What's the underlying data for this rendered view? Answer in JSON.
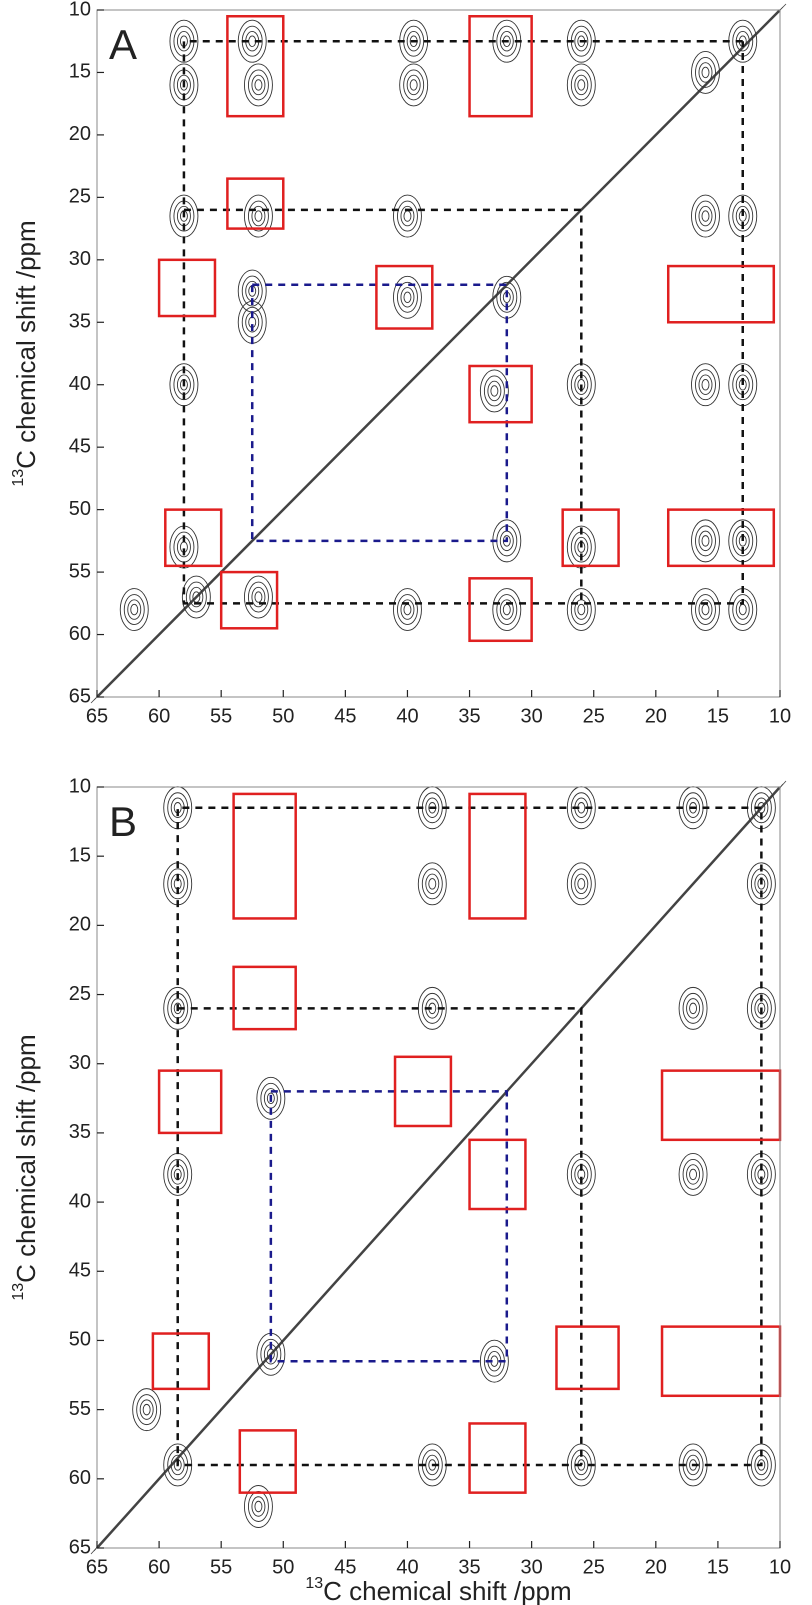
{
  "chart_data": [
    {
      "type": "contour",
      "panel_label": "A",
      "ylabel_isotope": "13",
      "ylabel": "C chemical shift /ppm",
      "xlim": [
        65,
        10
      ],
      "ylim": [
        10,
        65
      ],
      "xticks": [
        65,
        60,
        55,
        50,
        45,
        40,
        35,
        30,
        25,
        20,
        15,
        10
      ],
      "yticks": [
        10,
        15,
        20,
        25,
        30,
        35,
        40,
        45,
        50,
        55,
        60,
        65
      ],
      "peaks": {
        "color": "#333333",
        "x": [
          58,
          58,
          52.5,
          52,
          39.5,
          39.5,
          32,
          26,
          26,
          16,
          13,
          58,
          52,
          40,
          16,
          13,
          52.5,
          52.5,
          40,
          32,
          58,
          33,
          26,
          16,
          13,
          58,
          32,
          26,
          16,
          13,
          62,
          57,
          52,
          40,
          32,
          26,
          16,
          13
        ],
        "y": [
          12.5,
          16,
          12.5,
          16,
          12.5,
          16,
          12.5,
          12.5,
          16,
          15,
          12.5,
          26.5,
          26.5,
          26.5,
          26.5,
          26.5,
          32.5,
          35,
          33,
          33,
          40,
          40.5,
          40,
          40,
          40,
          53,
          52.5,
          53,
          52.5,
          52.5,
          58,
          57,
          57,
          58,
          58,
          58,
          58,
          58
        ]
      },
      "boxes": {
        "color": "#e02020",
        "x1": [
          54.5,
          35,
          54.5,
          60,
          42.5,
          19,
          35,
          59.5,
          27.5,
          19,
          55,
          35
        ],
        "x2": [
          50,
          30,
          50,
          55.5,
          38,
          10.5,
          30,
          55,
          23,
          10.5,
          50.5,
          30
        ],
        "y1": [
          10.5,
          10.5,
          23.5,
          30,
          30.5,
          30.5,
          38.5,
          50,
          50,
          50,
          55,
          55.5
        ],
        "y2": [
          18.5,
          18.5,
          27.5,
          34.5,
          35.5,
          35,
          43,
          54.5,
          54.5,
          54.5,
          59.5,
          60.5
        ]
      },
      "dashed": [
        {
          "color": "#111111",
          "x": [
            13,
            58,
            58,
            13,
            13
          ],
          "y": [
            12.5,
            12.5,
            57.5,
            57.5,
            12.5
          ]
        },
        {
          "color": "#111111",
          "x": [
            58,
            26,
            26
          ],
          "y": [
            26,
            26,
            57.5
          ]
        },
        {
          "color": "#1a1a8c",
          "x": [
            52.5,
            32,
            32,
            52.5,
            52.5
          ],
          "y": [
            32,
            32,
            52.5,
            52.5,
            32
          ]
        }
      ]
    },
    {
      "type": "contour",
      "panel_label": "B",
      "ylabel_isotope": "13",
      "ylabel": "C chemical shift /ppm",
      "xlabel_isotope": "13",
      "xlabel": "C chemical shift /ppm",
      "xlim": [
        65,
        10
      ],
      "ylim": [
        10,
        65
      ],
      "xticks": [
        65,
        60,
        55,
        50,
        45,
        40,
        35,
        30,
        25,
        20,
        15,
        10
      ],
      "yticks": [
        10,
        15,
        20,
        25,
        30,
        35,
        40,
        45,
        50,
        55,
        60,
        65
      ],
      "peaks": {
        "color": "#333333",
        "x": [
          58.5,
          38,
          26,
          17,
          11.5,
          58.5,
          38,
          26,
          11.5,
          58.5,
          38,
          17,
          11.5,
          51,
          58.5,
          26,
          17,
          11.5,
          33,
          51,
          58.5,
          38,
          26,
          17,
          11.5,
          61,
          52
        ],
        "y": [
          11.5,
          11.5,
          11.5,
          11.5,
          11.5,
          17,
          17,
          17,
          17,
          26,
          26,
          26,
          26,
          32.5,
          38,
          38,
          38,
          38,
          51.5,
          51,
          59,
          59,
          59,
          59,
          59,
          55,
          62
        ]
      },
      "boxes": {
        "color": "#e02020",
        "x1": [
          54,
          35,
          54,
          60,
          41,
          19.5,
          35,
          60.5,
          28,
          19.5,
          53.5,
          35
        ],
        "x2": [
          49,
          30.5,
          49,
          55,
          36.5,
          10,
          30.5,
          56,
          23,
          10,
          49,
          30.5
        ],
        "y1": [
          10.5,
          10.5,
          23,
          30.5,
          29.5,
          30.5,
          35.5,
          49.5,
          49,
          49,
          56.5,
          56
        ],
        "y2": [
          19.5,
          19.5,
          27.5,
          35,
          34.5,
          35.5,
          40.5,
          53.5,
          53.5,
          54,
          61,
          61
        ]
      },
      "dashed": [
        {
          "color": "#111111",
          "x": [
            11.5,
            58.5,
            58.5,
            11.5,
            11.5
          ],
          "y": [
            11.5,
            11.5,
            59,
            59,
            11.5
          ]
        },
        {
          "color": "#111111",
          "x": [
            58.5,
            26,
            26
          ],
          "y": [
            26,
            26,
            59
          ]
        },
        {
          "color": "#1a1a8c",
          "x": [
            51,
            32,
            32,
            51,
            51
          ],
          "y": [
            32,
            32,
            51.5,
            51.5,
            32
          ]
        }
      ]
    }
  ]
}
